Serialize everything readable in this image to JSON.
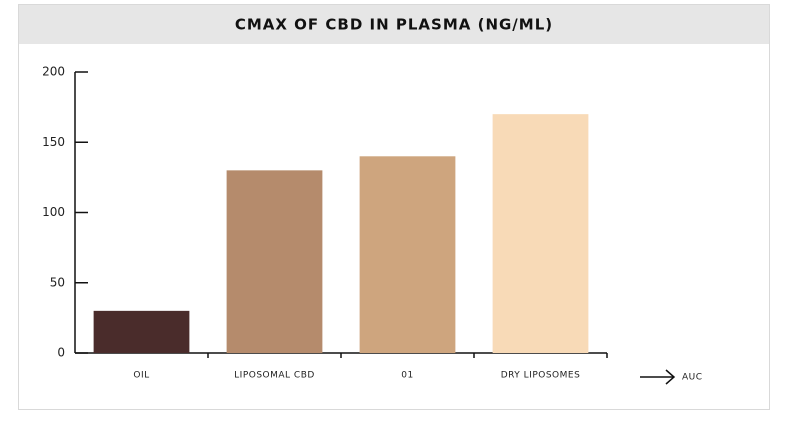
{
  "chart_data": {
    "type": "bar",
    "title": "CMAX OF CBD IN PLASMA (NG/ML)",
    "categories": [
      "OIL",
      "LIPOSOMAL CBD",
      "01",
      "DRY LIPOSOMES"
    ],
    "values": [
      30,
      130,
      140,
      170
    ],
    "colors": [
      "#4a2c2b",
      "#b58b6c",
      "#cea57e",
      "#f8dab7"
    ],
    "ylim": [
      0,
      200
    ],
    "yticks": [
      0,
      50,
      100,
      150,
      200
    ],
    "annotation": "AUC"
  }
}
